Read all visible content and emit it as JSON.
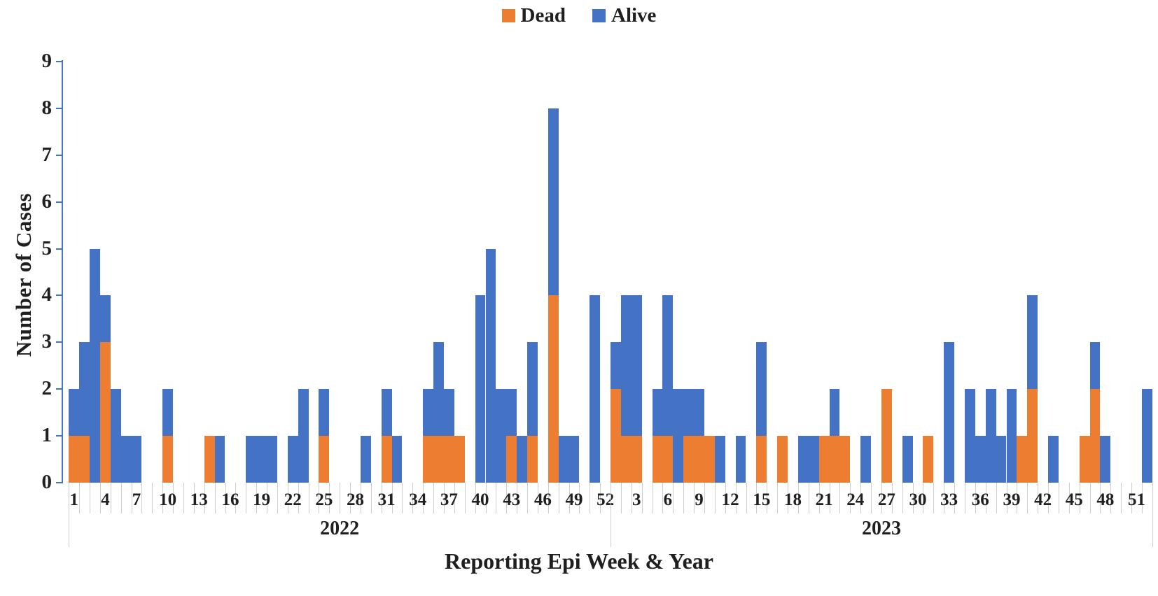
{
  "legend": {
    "dead_label": "Dead",
    "alive_label": "Alive"
  },
  "colors": {
    "dead": "#ED7D31",
    "alive": "#4472C4",
    "axis": "#4472C4",
    "category_tick": "#CFCECD",
    "text": "#1f1f1f"
  },
  "chart_data": {
    "type": "bar",
    "stacked": true,
    "title": "",
    "xlabel": "Reporting Epi Week & Year",
    "ylabel": "Number of Cases",
    "ylim": [
      0,
      9
    ],
    "ytick_step": 1,
    "grid": false,
    "legend_position": "top-center",
    "x_axis_note": "104 weekly categories; tick labels every 3rd week (1,4,...,52 for 2022 then 3,6,...,51 for 2023)",
    "years": [
      {
        "year": "2022",
        "weeks": [
          1,
          2,
          3,
          4,
          5,
          6,
          7,
          8,
          9,
          10,
          11,
          12,
          13,
          14,
          15,
          16,
          17,
          18,
          19,
          20,
          21,
          22,
          23,
          24,
          25,
          26,
          27,
          28,
          29,
          30,
          31,
          32,
          33,
          34,
          35,
          36,
          37,
          38,
          39,
          40,
          41,
          42,
          43,
          44,
          45,
          46,
          47,
          48,
          49,
          50,
          51,
          52
        ],
        "series": [
          {
            "name": "Dead",
            "values": [
              1,
              1,
              0,
              3,
              0,
              0,
              0,
              0,
              0,
              1,
              0,
              0,
              0,
              1,
              0,
              0,
              0,
              0,
              0,
              0,
              0,
              0,
              0,
              0,
              1,
              0,
              0,
              0,
              0,
              0,
              1,
              0,
              0,
              0,
              1,
              1,
              1,
              1,
              0,
              0,
              0,
              0,
              1,
              0,
              1,
              0,
              4,
              0,
              0,
              0,
              0,
              0
            ]
          },
          {
            "name": "Alive",
            "values": [
              1,
              2,
              5,
              1,
              2,
              1,
              1,
              0,
              0,
              1,
              0,
              0,
              0,
              0,
              1,
              0,
              0,
              1,
              1,
              1,
              0,
              1,
              2,
              0,
              1,
              0,
              0,
              0,
              1,
              0,
              1,
              1,
              0,
              0,
              1,
              2,
              1,
              0,
              0,
              4,
              5,
              2,
              1,
              1,
              2,
              0,
              4,
              1,
              1,
              0,
              4,
              0
            ]
          }
        ]
      },
      {
        "year": "2023",
        "weeks": [
          1,
          2,
          3,
          4,
          5,
          6,
          7,
          8,
          9,
          10,
          11,
          12,
          13,
          14,
          15,
          16,
          17,
          18,
          19,
          20,
          21,
          22,
          23,
          24,
          25,
          26,
          27,
          28,
          29,
          30,
          31,
          32,
          33,
          34,
          35,
          36,
          37,
          38,
          39,
          40,
          41,
          42,
          43,
          44,
          45,
          46,
          47,
          48,
          49,
          50,
          51,
          52
        ],
        "series": [
          {
            "name": "Dead",
            "values": [
              2,
              1,
              1,
              0,
              1,
              1,
              0,
              1,
              1,
              1,
              0,
              0,
              0,
              0,
              1,
              0,
              1,
              0,
              0,
              0,
              1,
              1,
              1,
              0,
              0,
              0,
              2,
              0,
              0,
              0,
              1,
              0,
              0,
              0,
              0,
              0,
              0,
              0,
              0,
              1,
              2,
              0,
              0,
              0,
              0,
              1,
              2,
              0,
              0,
              0,
              0,
              0
            ]
          },
          {
            "name": "Alive",
            "values": [
              1,
              3,
              3,
              0,
              1,
              3,
              2,
              1,
              1,
              0,
              1,
              0,
              1,
              0,
              2,
              0,
              0,
              0,
              1,
              1,
              0,
              1,
              0,
              0,
              1,
              0,
              0,
              0,
              1,
              0,
              0,
              0,
              3,
              0,
              2,
              1,
              2,
              1,
              2,
              0,
              2,
              0,
              1,
              0,
              0,
              0,
              1,
              1,
              0,
              0,
              0,
              2
            ]
          }
        ]
      }
    ]
  }
}
